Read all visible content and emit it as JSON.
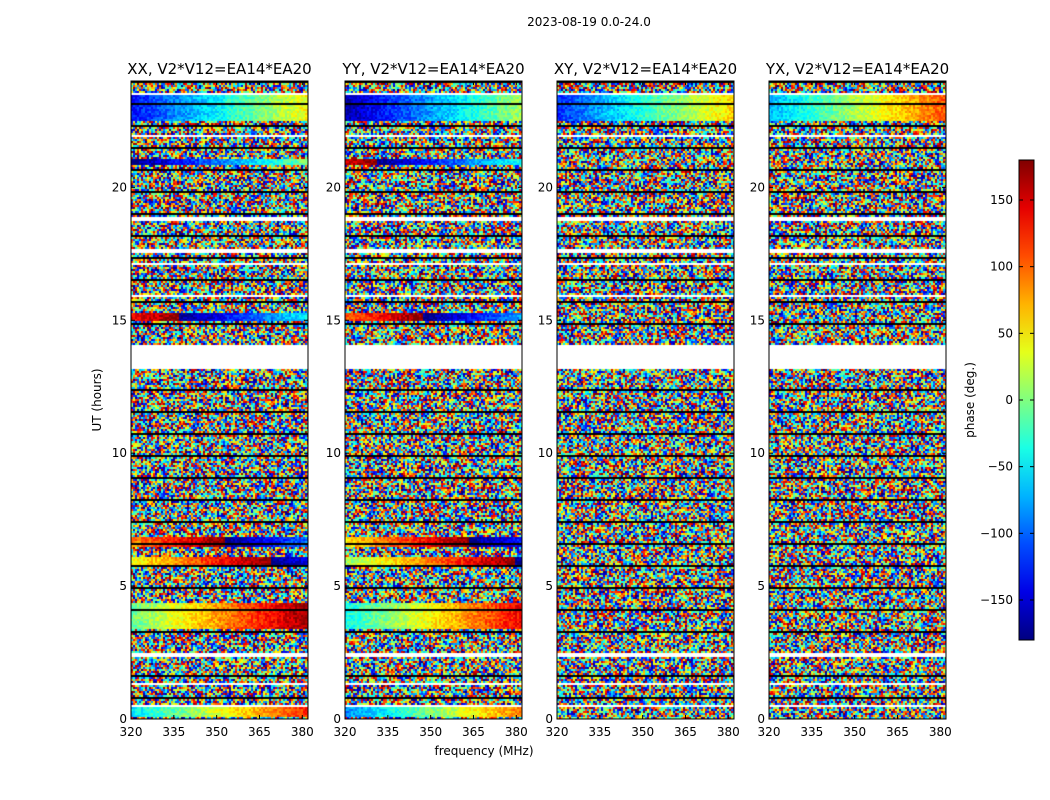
{
  "chart_data": {
    "type": "heatmap",
    "suptitle": "2023-08-19 0.0-24.0",
    "xlabel": "frequency (MHz)",
    "ylabel": "UT (hours)",
    "xlim": [
      320,
      382
    ],
    "ylim": [
      0,
      24
    ],
    "xticks": [
      320,
      335,
      350,
      365,
      380
    ],
    "yticks": [
      0,
      5,
      10,
      15,
      20
    ],
    "panels": [
      {
        "title": "XX, V2*V12=EA14*EA20",
        "coherent_bands": [
          [
            0.1,
            0.5,
            0
          ],
          [
            3.4,
            4.4,
            1
          ],
          [
            5.8,
            6.1,
            2
          ],
          [
            6.5,
            6.9,
            3
          ],
          [
            15.0,
            15.3,
            4
          ],
          [
            20.9,
            21.1,
            5
          ],
          [
            22.5,
            23.5,
            6
          ]
        ]
      },
      {
        "title": "YY, V2*V12=EA14*EA20",
        "coherent_bands": [
          [
            0.1,
            0.5,
            7
          ],
          [
            3.4,
            4.4,
            8
          ],
          [
            5.8,
            6.1,
            9
          ],
          [
            6.5,
            6.9,
            10
          ],
          [
            15.0,
            15.3,
            11
          ],
          [
            20.9,
            21.1,
            12
          ],
          [
            22.5,
            23.5,
            13
          ]
        ]
      },
      {
        "title": "XY, V2*V12=EA14*EA20",
        "coherent_bands": [
          [
            22.5,
            23.5,
            14
          ]
        ]
      },
      {
        "title": "YX, V2*V12=EA14*EA20",
        "coherent_bands": [
          [
            22.5,
            23.5,
            15
          ]
        ]
      }
    ],
    "colorbar": {
      "label": "phase (deg.)",
      "range": [
        -180,
        180
      ],
      "ticks": [
        -150,
        -100,
        -50,
        0,
        50,
        100,
        150
      ],
      "tick_labels": [
        "−150",
        "−100",
        "−50",
        "0",
        "50",
        "100",
        "150"
      ]
    },
    "colormap": "jet",
    "flagged_ut_ranges": [
      [
        0.5,
        0.6
      ],
      [
        1.3,
        1.4
      ],
      [
        2.4,
        2.5
      ],
      [
        8.0,
        8.05
      ],
      [
        13.2,
        14.1
      ],
      [
        15.9,
        16.0
      ],
      [
        17.1,
        17.2
      ],
      [
        17.6,
        17.7
      ],
      [
        18.8,
        18.9
      ],
      [
        21.9,
        22.0
      ],
      [
        23.5,
        23.6
      ]
    ]
  }
}
